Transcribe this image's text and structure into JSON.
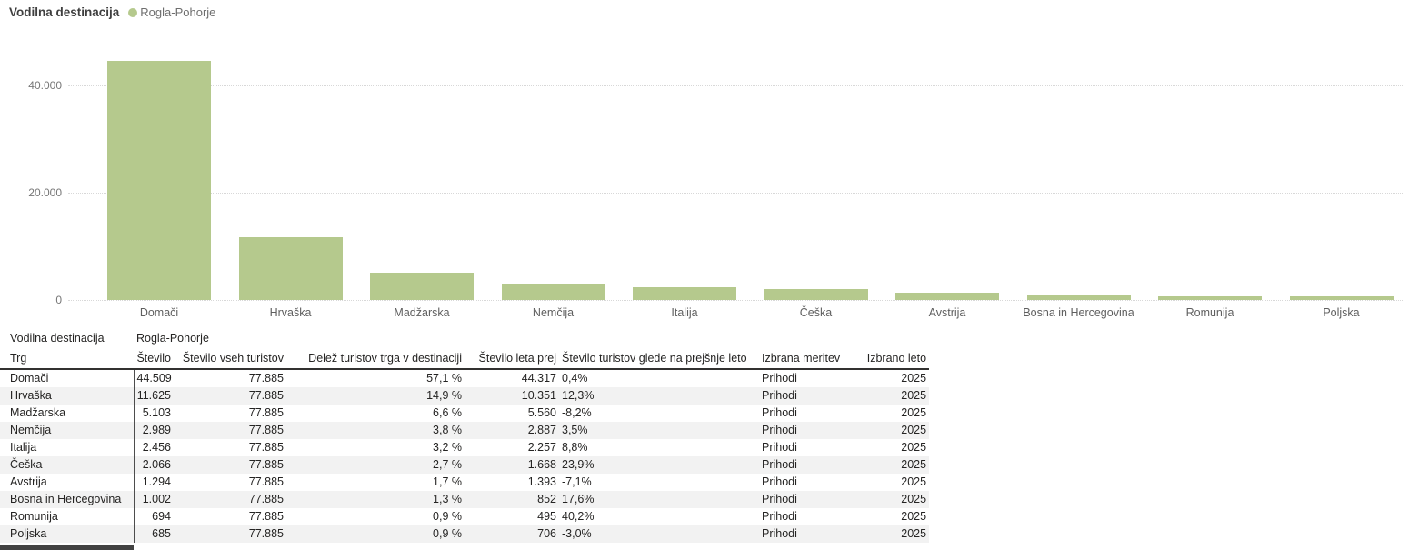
{
  "header": {
    "title": "Vodilna destinacija",
    "legend_label": "Rogla-Pohorje"
  },
  "colors": {
    "bar": "#b5c98d",
    "legend_dot": "#b5c98d"
  },
  "chart_data": {
    "type": "bar",
    "title": "Vodilna destinacija",
    "series_name": "Rogla-Pohorje",
    "categories": [
      "Domači",
      "Hrvaška",
      "Madžarska",
      "Nemčija",
      "Italija",
      "Češka",
      "Avstrija",
      "Bosna in Hercegovina",
      "Romunija",
      "Poljska"
    ],
    "values": [
      44509,
      11625,
      5103,
      2989,
      2456,
      2066,
      1294,
      1002,
      694,
      685
    ],
    "xlabel": "",
    "ylabel": "",
    "ylim": [
      0,
      47000
    ],
    "yticks": [
      0,
      20000,
      40000
    ],
    "ytick_labels": [
      "0",
      "20.000",
      "40.000"
    ],
    "grid": "horizontal-dotted",
    "legend_position": "top",
    "bar_color": "#b5c98d"
  },
  "table": {
    "meta_label": "Vodilna destinacija",
    "meta_value": "Rogla-Pohorje",
    "columns": [
      {
        "label": "Trg"
      },
      {
        "label": "Število"
      },
      {
        "label": "Število vseh turistov"
      },
      {
        "label": "Delež turistov trga v destinaciji"
      },
      {
        "label": "Število leta prej"
      },
      {
        "label": "Število turistov glede na prejšnje leto"
      },
      {
        "label": "Izbrana meritev"
      },
      {
        "label": "Izbrano leto"
      }
    ],
    "rows": [
      [
        "Domači",
        "44.509",
        "77.885",
        "57,1 %",
        "44.317",
        "0,4%",
        "Prihodi",
        "2025"
      ],
      [
        "Hrvaška",
        "11.625",
        "77.885",
        "14,9 %",
        "10.351",
        "12,3%",
        "Prihodi",
        "2025"
      ],
      [
        "Madžarska",
        "5.103",
        "77.885",
        "6,6 %",
        "5.560",
        "-8,2%",
        "Prihodi",
        "2025"
      ],
      [
        "Nemčija",
        "2.989",
        "77.885",
        "3,8 %",
        "2.887",
        "3,5%",
        "Prihodi",
        "2025"
      ],
      [
        "Italija",
        "2.456",
        "77.885",
        "3,2 %",
        "2.257",
        "8,8%",
        "Prihodi",
        "2025"
      ],
      [
        "Češka",
        "2.066",
        "77.885",
        "2,7 %",
        "1.668",
        "23,9%",
        "Prihodi",
        "2025"
      ],
      [
        "Avstrija",
        "1.294",
        "77.885",
        "1,7 %",
        "1.393",
        "-7,1%",
        "Prihodi",
        "2025"
      ],
      [
        "Bosna in Hercegovina",
        "1.002",
        "77.885",
        "1,3 %",
        "852",
        "17,6%",
        "Prihodi",
        "2025"
      ],
      [
        "Romunija",
        "694",
        "77.885",
        "0,9 %",
        "495",
        "40,2%",
        "Prihodi",
        "2025"
      ],
      [
        "Poljska",
        "685",
        "77.885",
        "0,9 %",
        "706",
        "-3,0%",
        "Prihodi",
        "2025"
      ]
    ]
  }
}
